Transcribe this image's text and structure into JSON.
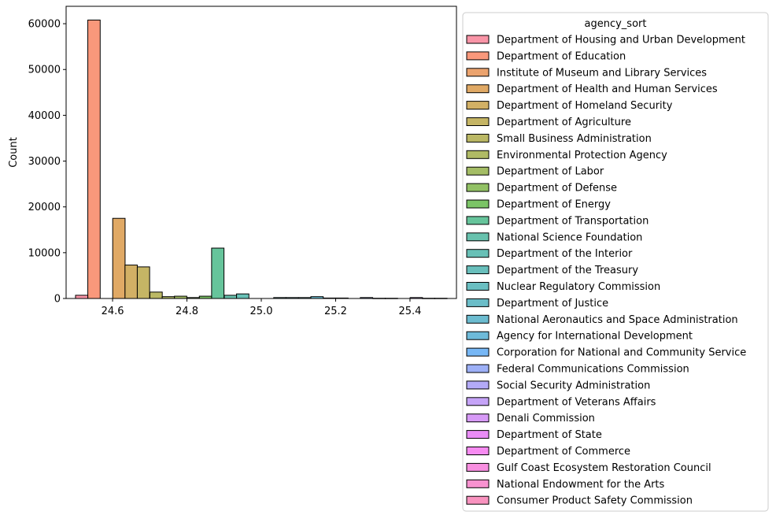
{
  "chart_data": {
    "type": "bar",
    "title": "",
    "xlabel": "",
    "ylabel": "Count",
    "xlim": [
      24.475,
      25.525
    ],
    "ylim": [
      0,
      63800
    ],
    "xticks": [
      24.6,
      24.8,
      25.0,
      25.2,
      25.4
    ],
    "xtick_labels": [
      "24.6",
      "24.8",
      "25.0",
      "25.2",
      "25.4"
    ],
    "yticks": [
      0,
      10000,
      20000,
      30000,
      40000,
      50000,
      60000
    ],
    "ytick_labels": [
      "0",
      "10000",
      "20000",
      "30000",
      "40000",
      "50000",
      "60000"
    ],
    "grid": false,
    "bin_width": 0.0333,
    "legend": {
      "title": "agency_sort",
      "placement": "outside-right",
      "entries": [
        {
          "name": "Department of Housing and Urban Development",
          "color": "#f77189"
        },
        {
          "name": "Department of Education",
          "color": "#f7754f"
        },
        {
          "name": "Institute of Museum and Library Services",
          "color": "#e4843d"
        },
        {
          "name": "Department of Health and Human Services",
          "color": "#d58c32"
        },
        {
          "name": "Department of Homeland Security",
          "color": "#c39532"
        },
        {
          "name": "Department of Agriculture",
          "color": "#b29c32"
        },
        {
          "name": "Small Business Administration",
          "color": "#a4a031"
        },
        {
          "name": "Environmental Protection Agency",
          "color": "#96a331"
        },
        {
          "name": "Department of Labor",
          "color": "#86a731"
        },
        {
          "name": "Department of Defense",
          "color": "#6eac31"
        },
        {
          "name": "Department of Energy",
          "color": "#4fb033"
        },
        {
          "name": "Department of Transportation",
          "color": "#33b07a"
        },
        {
          "name": "National Science Foundation",
          "color": "#35ad93"
        },
        {
          "name": "Department of the Interior",
          "color": "#36ab9e"
        },
        {
          "name": "Department of the Treasury",
          "color": "#37aaa6"
        },
        {
          "name": "Nuclear Regulatory Commission",
          "color": "#38a9ae"
        },
        {
          "name": "Department of Justice",
          "color": "#39a7b6"
        },
        {
          "name": "National Aeronautics and Space Administration",
          "color": "#3ba5c0"
        },
        {
          "name": "Agency for International Development",
          "color": "#3da3cc"
        },
        {
          "name": "Corporation for National and Community Service",
          "color": "#4a9ff1"
        },
        {
          "name": "Federal Communications Commission",
          "color": "#7c96f4"
        },
        {
          "name": "Social Security Administration",
          "color": "#998df4"
        },
        {
          "name": "Department of Veterans Affairs",
          "color": "#b184f4"
        },
        {
          "name": "Denali Commission",
          "color": "#c978f4"
        },
        {
          "name": "Department of State",
          "color": "#e366f4"
        },
        {
          "name": "Department of Commerce",
          "color": "#f464ec"
        },
        {
          "name": "Gulf Coast Ecosystem Restoration Council",
          "color": "#f569d5"
        },
        {
          "name": "National Endowment for the Arts",
          "color": "#f66dc0"
        },
        {
          "name": "Consumer Product Safety Commission",
          "color": "#f76fa9"
        }
      ]
    },
    "bars": [
      {
        "x": 24.517,
        "value": 700,
        "color": "#f77189"
      },
      {
        "x": 24.55,
        "value": 60800,
        "color": "#f7754f"
      },
      {
        "x": 24.583,
        "value": 0,
        "color": "#e4843d"
      },
      {
        "x": 24.617,
        "value": 17500,
        "color": "#d58c32"
      },
      {
        "x": 24.65,
        "value": 7300,
        "color": "#c39532"
      },
      {
        "x": 24.683,
        "value": 6900,
        "color": "#b29c32"
      },
      {
        "x": 24.717,
        "value": 1400,
        "color": "#a4a031"
      },
      {
        "x": 24.75,
        "value": 400,
        "color": "#96a331"
      },
      {
        "x": 24.783,
        "value": 500,
        "color": "#86a731"
      },
      {
        "x": 24.817,
        "value": 200,
        "color": "#6eac31"
      },
      {
        "x": 24.85,
        "value": 500,
        "color": "#4fb033"
      },
      {
        "x": 24.883,
        "value": 11000,
        "color": "#33b07a"
      },
      {
        "x": 24.917,
        "value": 700,
        "color": "#35ad93"
      },
      {
        "x": 24.95,
        "value": 1000,
        "color": "#36ab9e"
      },
      {
        "x": 25.05,
        "value": 200,
        "color": "#37aaa6"
      },
      {
        "x": 25.083,
        "value": 200,
        "color": "#38a9ae"
      },
      {
        "x": 25.117,
        "value": 200,
        "color": "#39a7b6"
      },
      {
        "x": 25.15,
        "value": 400,
        "color": "#3ba5c0"
      },
      {
        "x": 25.183,
        "value": 100,
        "color": "#3da3cc"
      },
      {
        "x": 25.217,
        "value": 100,
        "color": "#4a9ff1"
      },
      {
        "x": 25.283,
        "value": 200,
        "color": "#7c96f4"
      },
      {
        "x": 25.317,
        "value": 50,
        "color": "#998df4"
      },
      {
        "x": 25.35,
        "value": 50,
        "color": "#b184f4"
      },
      {
        "x": 25.417,
        "value": 200,
        "color": "#c978f4"
      },
      {
        "x": 25.45,
        "value": 50,
        "color": "#e366f4"
      },
      {
        "x": 25.483,
        "value": 50,
        "color": "#f464ec"
      }
    ]
  }
}
